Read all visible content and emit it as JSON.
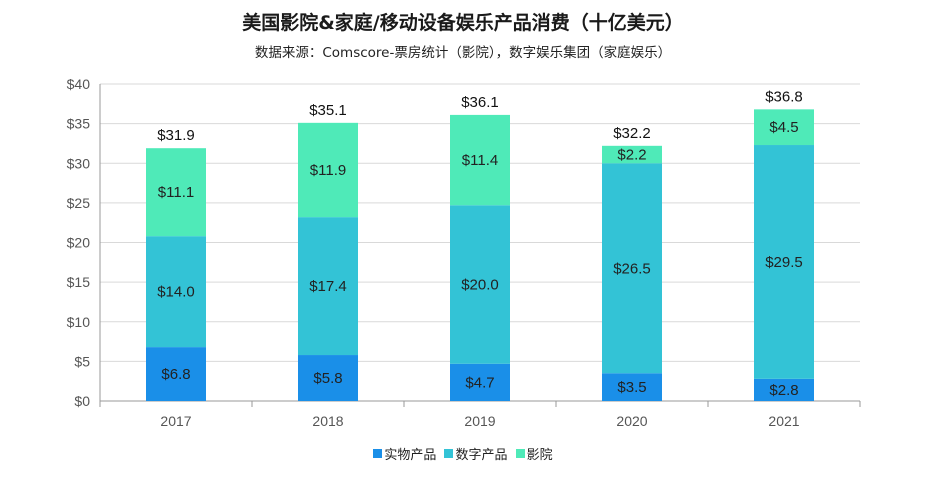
{
  "header": {
    "title": "美国影院&家庭/移动设备娱乐产品消费（十亿美元）",
    "subtitle": "数据来源：Comscore-票房统计（影院），数字娱乐集团（家庭娱乐）"
  },
  "colors": {
    "physical": "#1a8fe8",
    "digital": "#33c3d6",
    "theater": "#4feab8",
    "grid": "#d9d9d9",
    "axis": "#999999"
  },
  "chart_data": {
    "type": "bar",
    "stacked": true,
    "title": "美国影院&家庭/移动设备娱乐产品消费（十亿美元）",
    "xlabel": "",
    "ylabel": "",
    "ylim": [
      0,
      40
    ],
    "yticks": [
      0,
      5,
      10,
      15,
      20,
      25,
      30,
      35,
      40
    ],
    "ytick_labels": [
      "$0",
      "$5",
      "$10",
      "$15",
      "$20",
      "$25",
      "$30",
      "$35",
      "$40"
    ],
    "categories": [
      "2017",
      "2018",
      "2019",
      "2020",
      "2021"
    ],
    "series": [
      {
        "name": "实物产品",
        "color_key": "physical",
        "values": [
          6.8,
          5.8,
          4.7,
          3.5,
          2.8
        ],
        "labels": [
          "$6.8",
          "$5.8",
          "$4.7",
          "$3.5",
          "$2.8"
        ]
      },
      {
        "name": "数字产品",
        "color_key": "digital",
        "values": [
          14.0,
          17.4,
          20.0,
          26.5,
          29.5
        ],
        "labels": [
          "$14.0",
          "$17.4",
          "$20.0",
          "$26.5",
          "$29.5"
        ]
      },
      {
        "name": "影院",
        "color_key": "theater",
        "values": [
          11.1,
          11.9,
          11.4,
          2.2,
          4.5
        ],
        "labels": [
          "$11.1",
          "$11.9",
          "$11.4",
          "$2.2",
          "$4.5"
        ]
      }
    ],
    "totals": [
      31.9,
      35.1,
      36.1,
      32.2,
      36.8
    ],
    "total_labels": [
      "$31.9",
      "$35.1",
      "$36.1",
      "$32.2",
      "$36.8"
    ],
    "legend_position": "bottom"
  }
}
